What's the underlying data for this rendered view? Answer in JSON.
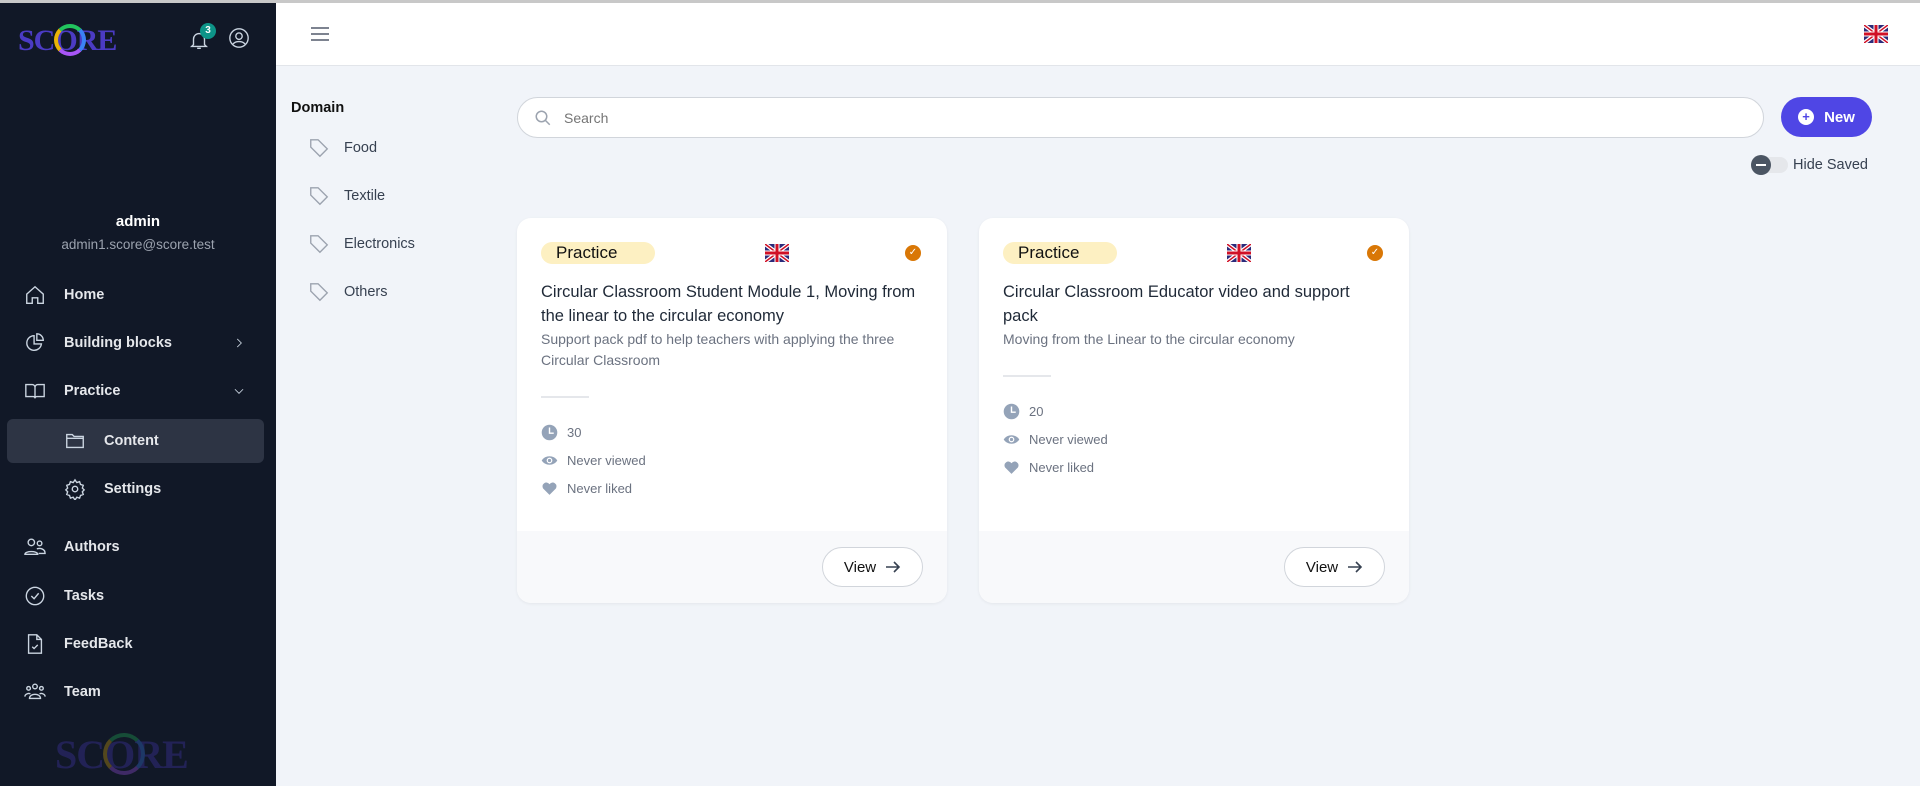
{
  "sidebar": {
    "logo": "SCORE",
    "notification_count": "3",
    "user": {
      "name": "admin",
      "email": "admin1.score@score.test"
    },
    "items": [
      {
        "label": "Home",
        "icon": "home-icon"
      },
      {
        "label": "Building blocks",
        "icon": "pie-chart-icon"
      },
      {
        "label": "Practice",
        "icon": "book-open-icon"
      },
      {
        "label": "Content",
        "icon": "folder-icon",
        "active": true
      },
      {
        "label": "Settings",
        "icon": "gear-icon"
      },
      {
        "label": "Authors",
        "icon": "users-icon"
      },
      {
        "label": "Tasks",
        "icon": "check-circle-icon"
      },
      {
        "label": "FeedBack",
        "icon": "document-check-icon"
      },
      {
        "label": "Team",
        "icon": "team-icon"
      }
    ]
  },
  "domain": {
    "title": "Domain",
    "items": [
      "Food",
      "Textile",
      "Electronics",
      "Others"
    ]
  },
  "search": {
    "placeholder": "Search"
  },
  "new_label": "New",
  "hide_saved": {
    "label": "Hide Saved",
    "on": false
  },
  "colors": {
    "sidebar": "#111827",
    "accent": "#4f46e5",
    "badge": "#fdf0c2",
    "check": "#d97706"
  },
  "cards": [
    {
      "type": "Practice",
      "title": "Circular Classroom Student Module 1, Moving from the linear to the circular economy",
      "description": "Support pack pdf to help teachers with applying the three Circular Classroom",
      "duration": "30",
      "views": "Never viewed",
      "likes": "Never liked",
      "action": "View"
    },
    {
      "type": "Practice",
      "title": "Circular Classroom Educator video and support pack",
      "description": "Moving from the Linear to the circular economy",
      "duration": "20",
      "views": "Never viewed",
      "likes": "Never liked",
      "action": "View"
    }
  ]
}
